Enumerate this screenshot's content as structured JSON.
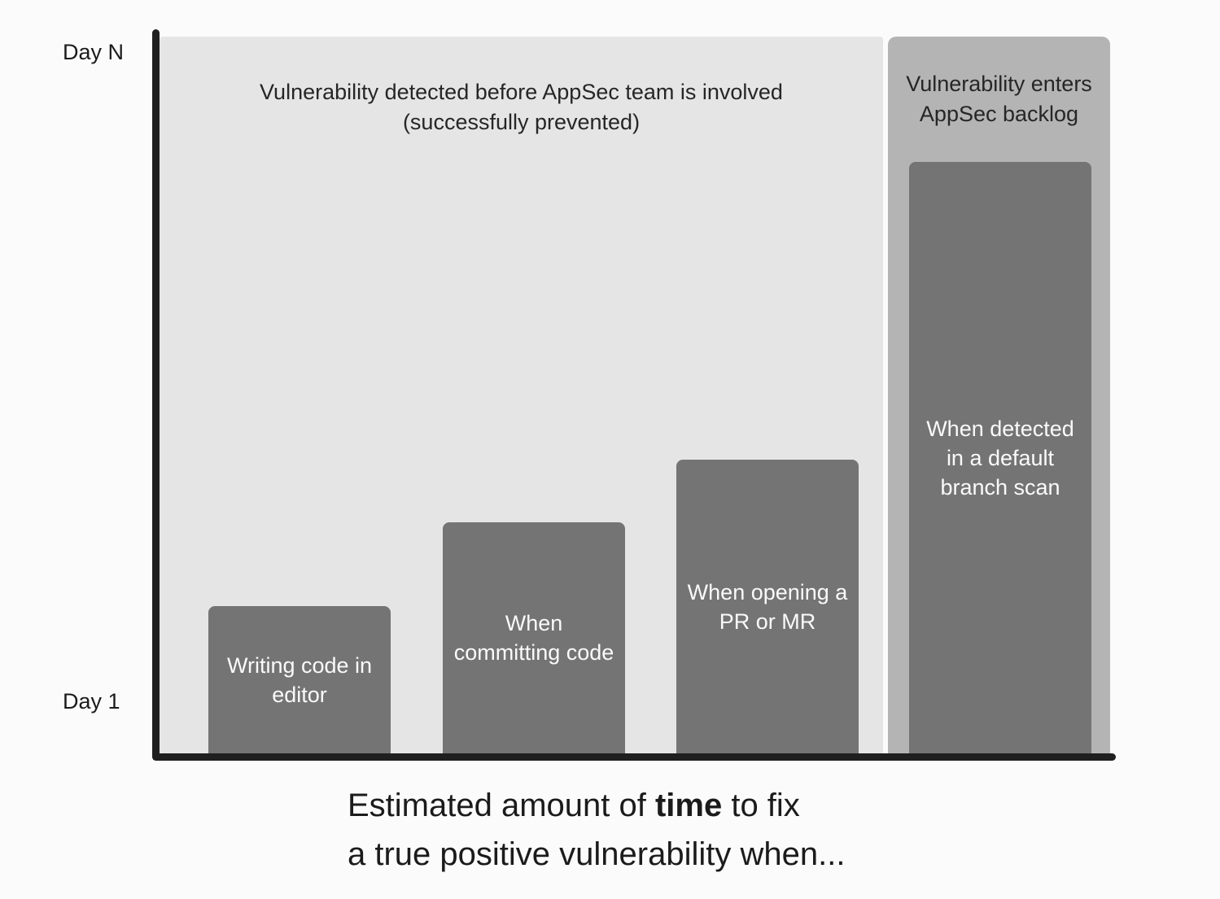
{
  "page": {
    "background": "#fbfbfb"
  },
  "axis": {
    "top_label": "Day N",
    "bottom_label": "Day 1",
    "color": "#1f1f1f"
  },
  "regions": {
    "prevented": {
      "title_line1": "Vulnerability detected before AppSec team is involved",
      "title_line2": "(successfully prevented)",
      "bg": "#e5e5e5",
      "text_color": "#262626"
    },
    "backlog": {
      "title_line1": "Vulnerability enters",
      "title_line2": "AppSec backlog",
      "bg": "#b4b4b4",
      "text_color": "#262626"
    }
  },
  "bars": {
    "color": "#747474",
    "label_color": "#fafafa",
    "items": [
      {
        "lines": [
          "Writing code in",
          "editor"
        ]
      },
      {
        "lines": [
          "When",
          "committing code"
        ]
      },
      {
        "lines": [
          "When opening a",
          "PR or MR"
        ]
      },
      {
        "lines": [
          "When detected",
          "in a default",
          "branch scan"
        ]
      }
    ]
  },
  "caption": {
    "line1_prefix": "Estimated amount of ",
    "line1_bold": "time",
    "line1_suffix": " to fix",
    "line2": "a true positive vulnerability when...",
    "color": "#1b1b1b"
  },
  "chart_data": {
    "type": "bar",
    "title": "Estimated amount of time to fix a true positive vulnerability when...",
    "categories": [
      "Writing code in editor",
      "When committing code",
      "When opening a PR or MR",
      "When detected in a default branch scan"
    ],
    "values_relative": [
      0.21,
      0.32,
      0.41,
      0.83
    ],
    "value_scale": "fraction of the Day 1 to Day N axis height (no numeric scale shown)",
    "ylabel": "",
    "xlabel": "",
    "y_axis_labels": {
      "bottom": "Day 1",
      "top": "Day N"
    },
    "annotations": [
      "Vulnerability detected before AppSec team is involved (successfully prevented)",
      "Vulnerability enters AppSec backlog"
    ],
    "grid": false,
    "legend": false
  }
}
